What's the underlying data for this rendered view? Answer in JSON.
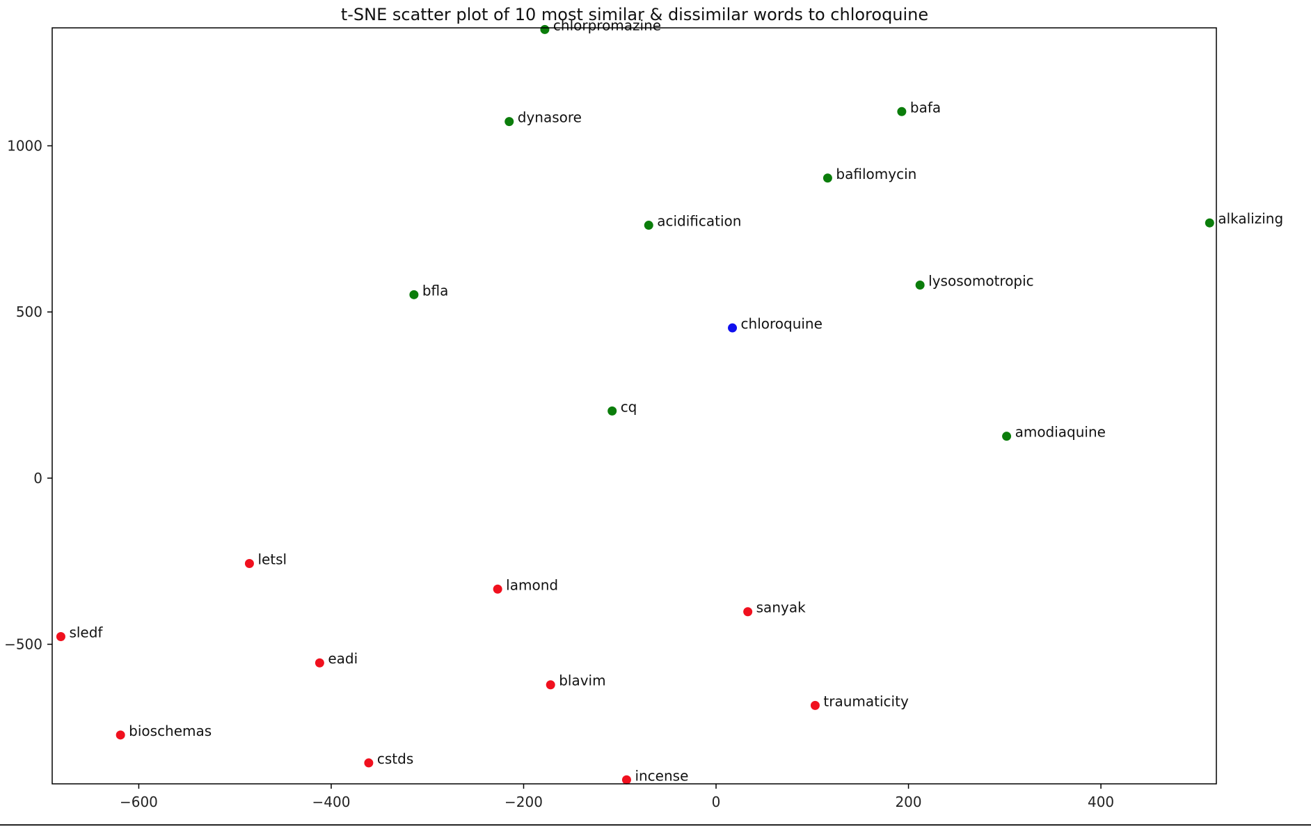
{
  "chart_data": {
    "type": "scatter",
    "title": "t-SNE scatter plot of 10 most similar & dissimilar words to chloroquine",
    "xlabel": "",
    "ylabel": "",
    "xlim": [
      -690,
      520
    ],
    "ylim": [
      -920,
      1355
    ],
    "xticks": [
      -600,
      -400,
      -200,
      0,
      200,
      400
    ],
    "yticks": [
      -500,
      0,
      500,
      1000
    ],
    "xtick_labels": [
      "−600",
      "−400",
      "−200",
      "0",
      "200",
      "400"
    ],
    "ytick_labels": [
      "−500",
      "0",
      "500",
      "1000"
    ],
    "grid": false,
    "colors": {
      "query": "#1010ee",
      "similar": "#0b7d0b",
      "dissimilar": "#f0101e"
    },
    "points": [
      {
        "label": "chloroquine",
        "x": 17,
        "y": 452,
        "group": "query"
      },
      {
        "label": "chlorpromazine",
        "x": -178,
        "y": 1350,
        "group": "similar"
      },
      {
        "label": "dynasore",
        "x": -215,
        "y": 1073,
        "group": "similar"
      },
      {
        "label": "bafa",
        "x": 193,
        "y": 1103,
        "group": "similar"
      },
      {
        "label": "bafilomycin",
        "x": 116,
        "y": 903,
        "group": "similar"
      },
      {
        "label": "acidification",
        "x": -70,
        "y": 761,
        "group": "similar"
      },
      {
        "label": "alkalizing",
        "x": 513,
        "y": 768,
        "group": "similar"
      },
      {
        "label": "lysosomotropic",
        "x": 212,
        "y": 581,
        "group": "similar"
      },
      {
        "label": "bfla",
        "x": -314,
        "y": 552,
        "group": "similar"
      },
      {
        "label": "cq",
        "x": -108,
        "y": 202,
        "group": "similar"
      },
      {
        "label": "amodiaquine",
        "x": 302,
        "y": 126,
        "group": "similar"
      },
      {
        "label": "letsl",
        "x": -485,
        "y": -257,
        "group": "dissimilar"
      },
      {
        "label": "lamond",
        "x": -227,
        "y": -334,
        "group": "dissimilar"
      },
      {
        "label": "sanyak",
        "x": 33,
        "y": -402,
        "group": "dissimilar"
      },
      {
        "label": "sledf",
        "x": -681,
        "y": -477,
        "group": "dissimilar"
      },
      {
        "label": "eadi",
        "x": -412,
        "y": -556,
        "group": "dissimilar"
      },
      {
        "label": "blavim",
        "x": -172,
        "y": -622,
        "group": "dissimilar"
      },
      {
        "label": "traumaticity",
        "x": 103,
        "y": -684,
        "group": "dissimilar"
      },
      {
        "label": "bioschemas",
        "x": -619,
        "y": -773,
        "group": "dissimilar"
      },
      {
        "label": "cstds",
        "x": -361,
        "y": -857,
        "group": "dissimilar"
      },
      {
        "label": "incense",
        "x": -93,
        "y": -908,
        "group": "dissimilar"
      }
    ]
  }
}
